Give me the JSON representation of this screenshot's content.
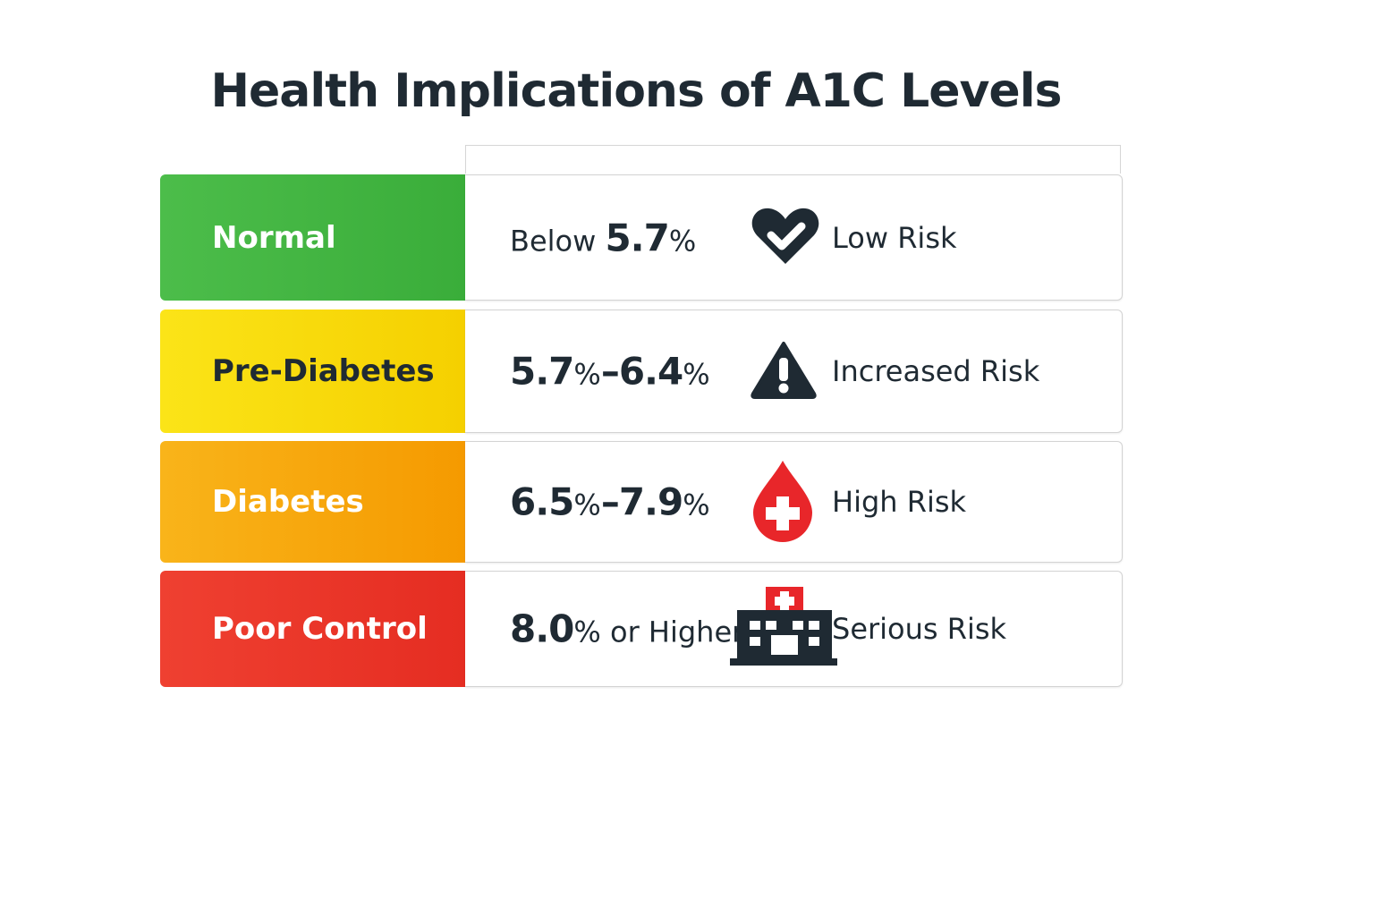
{
  "header": {
    "title": "Health Implications of A1C Levels"
  },
  "table": {
    "rows": [
      {
        "category": "Normal",
        "range": "Below 5.7%",
        "risk": "Low Risk"
      },
      {
        "category": "Pre-Diabetes",
        "range": "5.7%–6.4%",
        "risk": "Increased Risk"
      },
      {
        "category": "Diabetes",
        "range": "6.5%–7.9%",
        "risk": "High Risk"
      },
      {
        "category": "Poor Control",
        "range": "8.0% or Higher",
        "risk": "Serious Risk"
      }
    ]
  }
}
